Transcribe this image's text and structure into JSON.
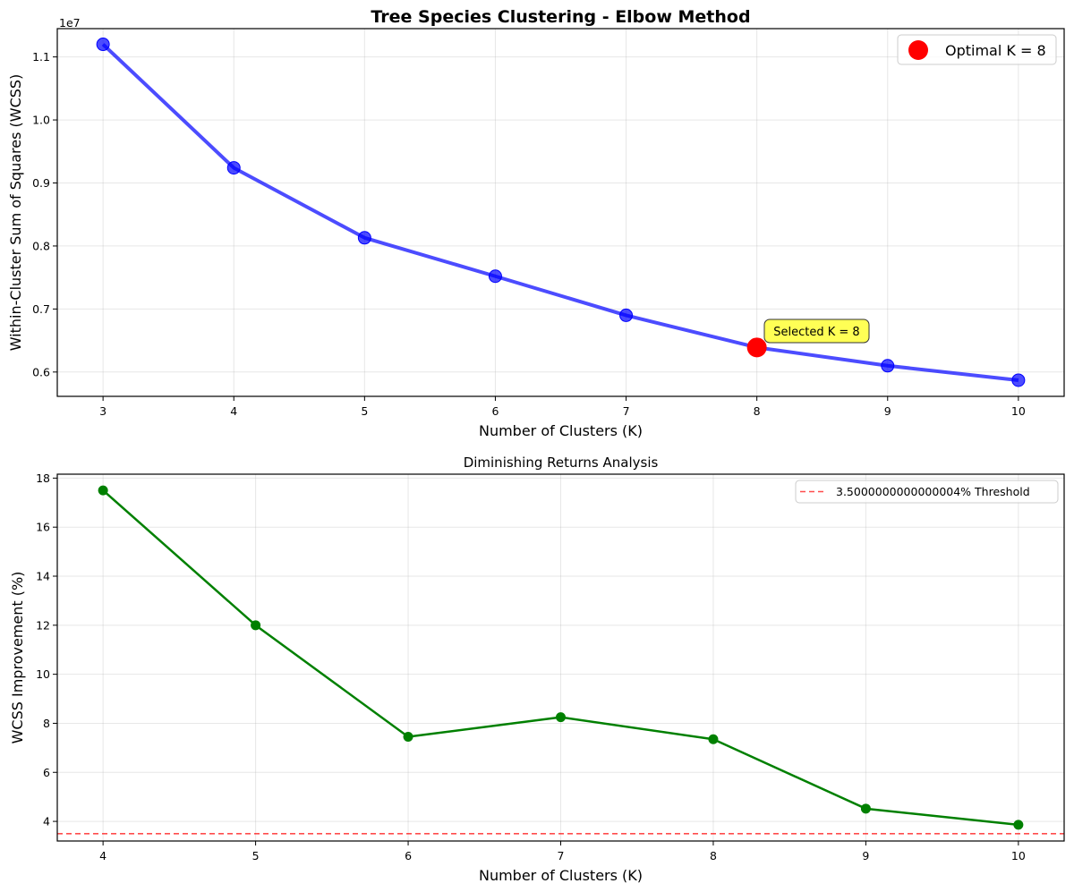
{
  "chart_data": [
    {
      "type": "line",
      "title": "Tree Species Clustering - Elbow Method",
      "xlabel": "Number of Clusters (K)",
      "ylabel": "Within-Cluster Sum of Squares (WCSS)",
      "y_offset_label": "1e7",
      "x_ticks": [
        3,
        4,
        5,
        6,
        7,
        8,
        9,
        10
      ],
      "y_ticks": [
        0.6,
        0.7,
        0.8,
        0.9,
        1.0,
        1.1
      ],
      "y_tick_labels": [
        "0.6",
        "0.7",
        "0.8",
        "0.9",
        "1.0",
        "1.1"
      ],
      "xlim": [
        2.65,
        10.35
      ],
      "ylim": [
        0.5614,
        1.1449
      ],
      "grid": true,
      "legend_position": "top-right",
      "series": [
        {
          "color": "#0000ff",
          "x": [
            3,
            4,
            5,
            6,
            7,
            8,
            9,
            10
          ],
          "y": [
            1.12,
            0.924,
            0.813,
            0.752,
            0.69,
            0.639,
            0.61,
            0.587
          ]
        },
        {
          "name": "Optimal K = 8",
          "color": "#ff0000",
          "x": [
            8
          ],
          "y": [
            0.639
          ]
        }
      ],
      "annotation": {
        "text": "Selected K = 8",
        "x": 8,
        "y": 0.639,
        "color": "#ffff55"
      }
    },
    {
      "type": "line",
      "title": "Diminishing Returns Analysis",
      "xlabel": "Number of Clusters (K)",
      "ylabel": "WCSS Improvement (%)",
      "x_ticks": [
        4,
        5,
        6,
        7,
        8,
        9,
        10
      ],
      "y_ticks": [
        4,
        6,
        8,
        10,
        12,
        14,
        16,
        18
      ],
      "xlim": [
        3.7,
        10.3
      ],
      "ylim": [
        3.2,
        18.16
      ],
      "grid": true,
      "legend_position": "top-right",
      "series": [
        {
          "color": "#008000",
          "x": [
            4,
            5,
            6,
            7,
            8,
            9,
            10
          ],
          "y": [
            17.5,
            12.0,
            7.45,
            8.25,
            7.35,
            4.52,
            3.86
          ]
        }
      ],
      "threshold": {
        "value": 3.5,
        "label": "3.5000000000000004% Threshold",
        "color": "#ff0000"
      }
    }
  ]
}
